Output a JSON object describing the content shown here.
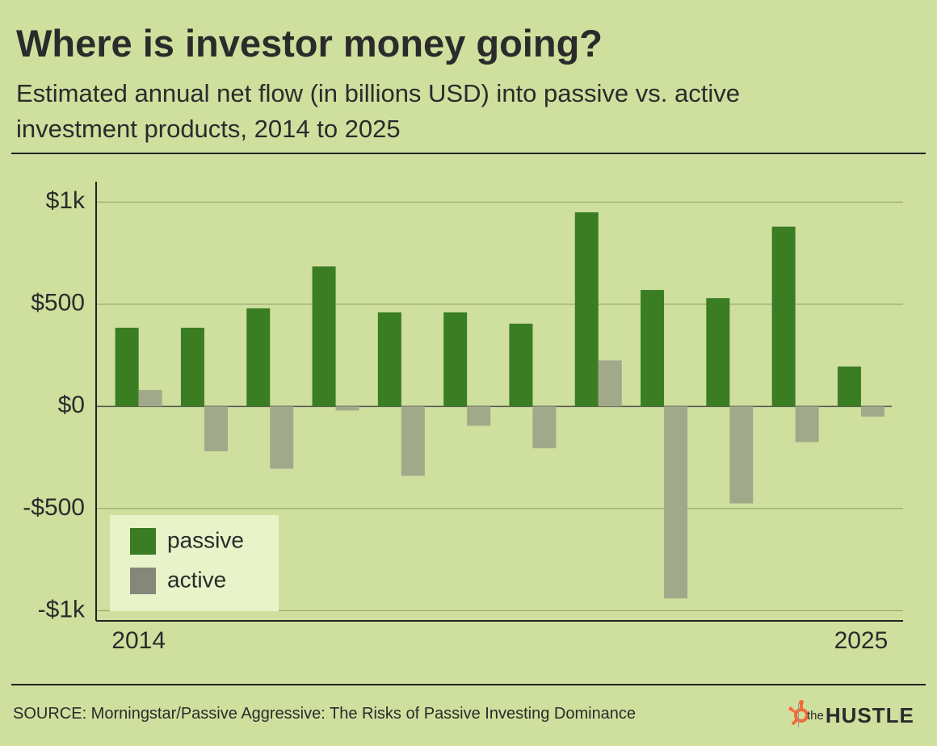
{
  "chart_data": {
    "type": "bar",
    "title": "Where is investor money going?",
    "subtitle": "Estimated annual net flow (in billions USD) into passive vs. active investment products, 2014 to 2025",
    "categories": [
      "2014",
      null,
      null,
      null,
      null,
      null,
      null,
      null,
      null,
      null,
      null,
      "2025"
    ],
    "series": [
      {
        "name": "passive",
        "color": "#3a7d23",
        "values": [
          385,
          385,
          480,
          685,
          460,
          460,
          405,
          950,
          570,
          530,
          880,
          195
        ]
      },
      {
        "name": "active",
        "color": "#a2a88a",
        "values": [
          80,
          -220,
          -305,
          -20,
          -340,
          -95,
          -205,
          225,
          -940,
          -475,
          -175,
          -50
        ]
      }
    ],
    "ylim": [
      -1050,
      1100
    ],
    "yticks": [
      {
        "value": 1000,
        "label": "$1k"
      },
      {
        "value": 500,
        "label": "$500"
      },
      {
        "value": 0,
        "label": "$0"
      },
      {
        "value": -500,
        "label": "-$500"
      },
      {
        "value": -1000,
        "label": "-$1k"
      }
    ],
    "grid": true,
    "legend": "lower left",
    "source": "SOURCE: Morningstar/Passive Aggressive: The Risks of Passive Investing Dominance",
    "brand_prefix": "the",
    "brand_name": "HUSTLE"
  }
}
